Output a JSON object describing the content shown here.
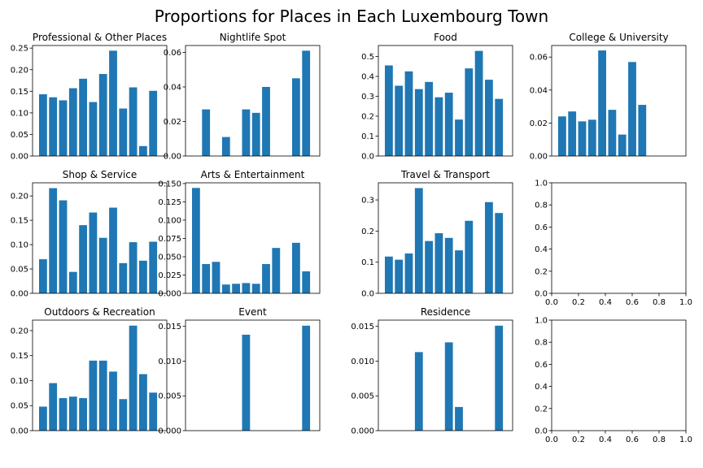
{
  "figure": {
    "title": "Proportions for Places in Each Luxembourg Town"
  },
  "chart_data": [
    {
      "type": "bar",
      "title": "Professional & Other Places",
      "xlabel": "",
      "ylabel": "",
      "values": [
        0.143,
        0.136,
        0.129,
        0.157,
        0.179,
        0.125,
        0.19,
        0.244,
        0.11,
        0.159,
        0.023,
        0.151
      ],
      "ylim": [
        0,
        0.256
      ],
      "yticks": [
        "0.00",
        "0.05",
        "0.10",
        "0.15",
        "0.20",
        "0.25"
      ],
      "ytick_values": [
        0,
        0.05,
        0.1,
        0.15,
        0.2,
        0.25
      ],
      "xticks_visible": false
    },
    {
      "type": "bar",
      "title": "Nightlife Spot",
      "xlabel": "",
      "ylabel": "",
      "values": [
        0,
        0.027,
        0,
        0.011,
        0,
        0.027,
        0.025,
        0.04,
        0,
        0,
        0.045,
        0.061
      ],
      "ylim": [
        0,
        0.064
      ],
      "yticks": [
        "0.00",
        "0.02",
        "0.04",
        "0.06"
      ],
      "ytick_values": [
        0,
        0.02,
        0.04,
        0.06
      ],
      "xticks_visible": false
    },
    {
      "type": "bar",
      "title": "Food",
      "xlabel": "",
      "ylabel": "",
      "values": [
        0.455,
        0.353,
        0.425,
        0.336,
        0.372,
        0.295,
        0.318,
        0.183,
        0.44,
        0.528,
        0.383,
        0.287
      ],
      "ylim": [
        0,
        0.555
      ],
      "yticks": [
        "0.0",
        "0.1",
        "0.2",
        "0.3",
        "0.4",
        "0.5"
      ],
      "ytick_values": [
        0,
        0.1,
        0.2,
        0.3,
        0.4,
        0.5
      ],
      "xticks_visible": false
    },
    {
      "type": "bar",
      "title": "College & University",
      "xlabel": "",
      "ylabel": "",
      "values": [
        0.024,
        0.027,
        0.021,
        0.022,
        0.064,
        0.028,
        0.013,
        0.057,
        0.031,
        0,
        0,
        0
      ],
      "ylim": [
        0,
        0.067
      ],
      "yticks": [
        "0.00",
        "0.02",
        "0.04",
        "0.06"
      ],
      "ytick_values": [
        0,
        0.02,
        0.04,
        0.06
      ],
      "xticks_visible": false
    },
    {
      "type": "bar",
      "title": "Shop & Service",
      "xlabel": "",
      "ylabel": "",
      "values": [
        0.07,
        0.216,
        0.191,
        0.044,
        0.14,
        0.166,
        0.114,
        0.176,
        0.062,
        0.105,
        0.067,
        0.106
      ],
      "ylim": [
        0,
        0.227
      ],
      "yticks": [
        "0.00",
        "0.05",
        "0.10",
        "0.15",
        "0.20"
      ],
      "ytick_values": [
        0,
        0.05,
        0.1,
        0.15,
        0.2
      ],
      "xticks_visible": false
    },
    {
      "type": "bar",
      "title": "Arts & Entertainment",
      "xlabel": "",
      "ylabel": "",
      "values": [
        0.144,
        0.04,
        0.043,
        0.012,
        0.013,
        0.014,
        0.013,
        0.04,
        0.062,
        0,
        0.069,
        0.03
      ],
      "ylim": [
        0,
        0.151
      ],
      "yticks": [
        "0.000",
        "0.025",
        "0.050",
        "0.075",
        "0.100",
        "0.125",
        "0.150"
      ],
      "ytick_values": [
        0,
        0.025,
        0.05,
        0.075,
        0.1,
        0.125,
        0.15
      ],
      "xticks_visible": false
    },
    {
      "type": "bar",
      "title": "Travel & Transport",
      "xlabel": "",
      "ylabel": "",
      "values": [
        0.118,
        0.108,
        0.128,
        0.338,
        0.168,
        0.193,
        0.178,
        0.138,
        0.233,
        0,
        0.293,
        0.258
      ],
      "ylim": [
        0,
        0.355
      ],
      "yticks": [
        "0.0",
        "0.1",
        "0.2",
        "0.3"
      ],
      "ytick_values": [
        0,
        0.1,
        0.2,
        0.3
      ],
      "xticks_visible": false
    },
    {
      "type": "bar",
      "title": "",
      "xlabel": "",
      "ylabel": "",
      "values": [],
      "ylim": [
        0,
        1
      ],
      "yticks": [
        "0.0",
        "0.2",
        "0.4",
        "0.6",
        "0.8",
        "1.0"
      ],
      "ytick_values": [
        0,
        0.2,
        0.4,
        0.6,
        0.8,
        1.0
      ],
      "xlim": [
        0,
        1
      ],
      "xticks": [
        "0.0",
        "0.2",
        "0.4",
        "0.6",
        "0.8",
        "1.0"
      ],
      "xtick_values": [
        0,
        0.2,
        0.4,
        0.6,
        0.8,
        1.0
      ],
      "xticks_visible": true
    },
    {
      "type": "bar",
      "title": "Outdoors & Recreation",
      "xlabel": "",
      "ylabel": "",
      "values": [
        0.048,
        0.095,
        0.065,
        0.068,
        0.065,
        0.14,
        0.14,
        0.118,
        0.063,
        0.21,
        0.113,
        0.076
      ],
      "ylim": [
        0,
        0.221
      ],
      "yticks": [
        "0.00",
        "0.05",
        "0.10",
        "0.15",
        "0.20"
      ],
      "ytick_values": [
        0,
        0.05,
        0.1,
        0.15,
        0.2
      ],
      "xticks_visible": false
    },
    {
      "type": "bar",
      "title": "Event",
      "xlabel": "",
      "ylabel": "",
      "values": [
        0,
        0,
        0,
        0,
        0,
        0.0138,
        0,
        0,
        0,
        0,
        0,
        0.0151
      ],
      "ylim": [
        0,
        0.0159
      ],
      "yticks": [
        "0.000",
        "0.005",
        "0.010",
        "0.015"
      ],
      "ytick_values": [
        0,
        0.005,
        0.01,
        0.015
      ],
      "xticks_visible": false
    },
    {
      "type": "bar",
      "title": "Residence",
      "xlabel": "",
      "ylabel": "",
      "values": [
        0,
        0,
        0,
        0.0113,
        0,
        0,
        0.0127,
        0.0034,
        0,
        0,
        0,
        0.0151
      ],
      "ylim": [
        0,
        0.0159
      ],
      "yticks": [
        "0.000",
        "0.005",
        "0.010",
        "0.015"
      ],
      "ytick_values": [
        0,
        0.005,
        0.01,
        0.015
      ],
      "xticks_visible": false
    },
    {
      "type": "bar",
      "title": "",
      "xlabel": "",
      "ylabel": "",
      "values": [],
      "ylim": [
        0,
        1
      ],
      "yticks": [
        "0.0",
        "0.2",
        "0.4",
        "0.6",
        "0.8",
        "1.0"
      ],
      "ytick_values": [
        0,
        0.2,
        0.4,
        0.6,
        0.8,
        1.0
      ],
      "xlim": [
        0,
        1
      ],
      "xticks": [
        "0.0",
        "0.2",
        "0.4",
        "0.6",
        "0.8",
        "1.0"
      ],
      "xtick_values": [
        0,
        0.2,
        0.4,
        0.6,
        0.8,
        1.0
      ],
      "xticks_visible": true
    }
  ]
}
